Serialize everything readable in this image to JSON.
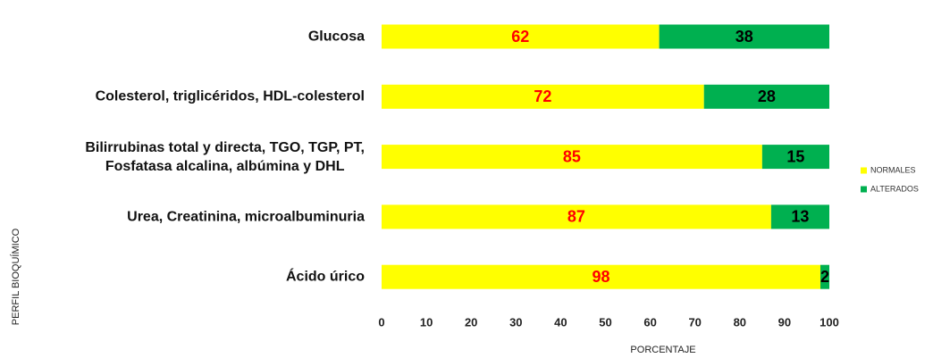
{
  "chart_data": {
    "type": "stacked-barh",
    "categories": [
      "Glucosa",
      "Colesterol, triglicéridos, HDL-colesterol",
      "Bilirrubinas total y directa, TGO, TGP, PT,\nFosfatasa alcalina, albúmina y DHL",
      "Urea, Creatinina, microalbuminuria",
      "Ácido úrico"
    ],
    "series": [
      {
        "name": "NORMALES",
        "color": "#ffff00",
        "label_color": "#ff0000",
        "values": [
          62,
          72,
          85,
          87,
          98
        ]
      },
      {
        "name": "ALTERADOS",
        "color": "#00b050",
        "label_color": "#000000",
        "values": [
          38,
          28,
          15,
          13,
          2
        ]
      }
    ],
    "xlim": [
      0,
      100
    ],
    "xticks": [
      0,
      10,
      20,
      30,
      40,
      50,
      60,
      70,
      80,
      90,
      100
    ],
    "xlabel": "PORCENTAJE",
    "ylabel": "PERFIL BIOQUÍMICO",
    "grid": false,
    "legend": "right"
  }
}
